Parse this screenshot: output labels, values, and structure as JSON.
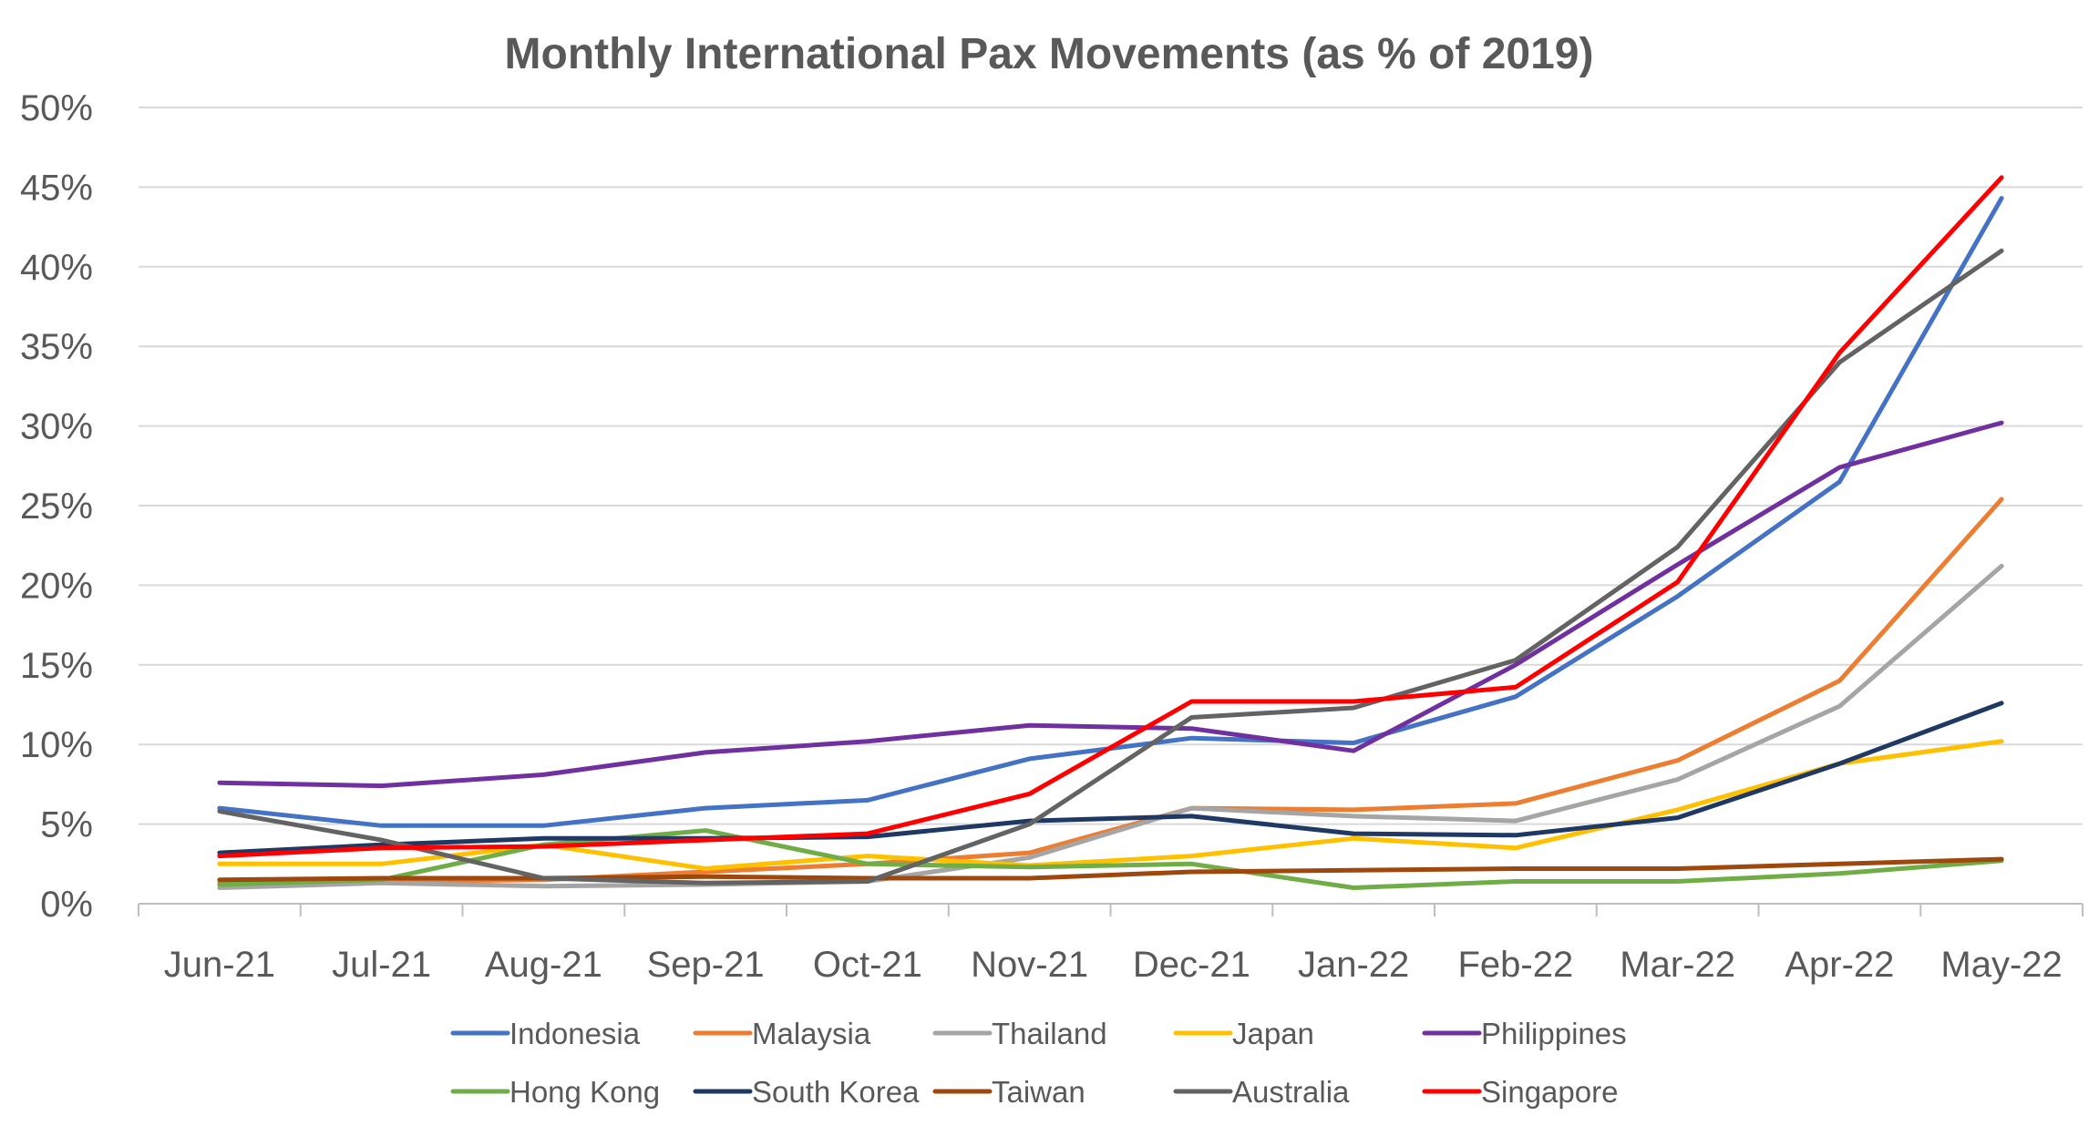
{
  "chart_data": {
    "type": "line",
    "title": "Monthly International Pax Movements (as % of 2019)",
    "xlabel": "",
    "ylabel": "",
    "categories": [
      "Jun-21",
      "Jul-21",
      "Aug-21",
      "Sep-21",
      "Oct-21",
      "Nov-21",
      "Dec-21",
      "Jan-22",
      "Feb-22",
      "Mar-22",
      "Apr-22",
      "May-22"
    ],
    "ylim": [
      0,
      50
    ],
    "yticks": [
      0,
      5,
      10,
      15,
      20,
      25,
      30,
      35,
      40,
      45,
      50
    ],
    "ytick_labels": [
      "0%",
      "5%",
      "10%",
      "15%",
      "20%",
      "25%",
      "30%",
      "35%",
      "40%",
      "45%",
      "50%"
    ],
    "grid": true,
    "legend_position": "bottom",
    "series": [
      {
        "name": "Indonesia",
        "color": "#4472C4",
        "values": [
          6.0,
          4.9,
          4.9,
          6.0,
          6.5,
          9.1,
          10.4,
          10.1,
          13.0,
          19.3,
          26.5,
          44.3
        ]
      },
      {
        "name": "Malaysia",
        "color": "#ED7D31",
        "values": [
          1.3,
          1.4,
          1.5,
          2.0,
          2.5,
          3.2,
          6.0,
          5.9,
          6.3,
          9.0,
          14.0,
          25.4
        ]
      },
      {
        "name": "Thailand",
        "color": "#A5A5A5",
        "values": [
          1.0,
          1.3,
          1.1,
          1.2,
          1.4,
          2.9,
          6.0,
          5.5,
          5.2,
          7.8,
          12.4,
          21.2
        ]
      },
      {
        "name": "Japan",
        "color": "#FFC000",
        "values": [
          2.5,
          2.5,
          3.7,
          2.2,
          3.0,
          2.4,
          3.0,
          4.1,
          3.5,
          5.9,
          8.8,
          10.2
        ]
      },
      {
        "name": "Philippines",
        "color": "#7030A0",
        "values": [
          7.6,
          7.4,
          8.1,
          9.5,
          10.2,
          11.2,
          11.0,
          9.6,
          15.0,
          21.3,
          27.4,
          30.2
        ]
      },
      {
        "name": "Hong Kong",
        "color": "#70AD47",
        "values": [
          1.2,
          1.5,
          3.7,
          4.6,
          2.5,
          2.3,
          2.5,
          1.0,
          1.4,
          1.4,
          1.9,
          2.7
        ]
      },
      {
        "name": "South Korea",
        "color": "#203864",
        "values": [
          3.2,
          3.7,
          4.1,
          4.1,
          4.2,
          5.2,
          5.5,
          4.4,
          4.3,
          5.4,
          8.8,
          12.6
        ]
      },
      {
        "name": "Taiwan",
        "color": "#9E480E",
        "values": [
          1.5,
          1.6,
          1.6,
          1.7,
          1.6,
          1.6,
          2.0,
          2.1,
          2.2,
          2.2,
          2.5,
          2.8
        ]
      },
      {
        "name": "Australia",
        "color": "#636363",
        "values": [
          5.8,
          4.0,
          1.6,
          1.3,
          1.4,
          5.0,
          11.7,
          12.3,
          15.3,
          22.4,
          34.0,
          41.0
        ]
      },
      {
        "name": "Singapore",
        "color": "#FF0000",
        "values": [
          3.0,
          3.5,
          3.6,
          4.0,
          4.4,
          6.9,
          12.7,
          12.7,
          13.6,
          20.2,
          34.6,
          45.6
        ]
      }
    ]
  }
}
